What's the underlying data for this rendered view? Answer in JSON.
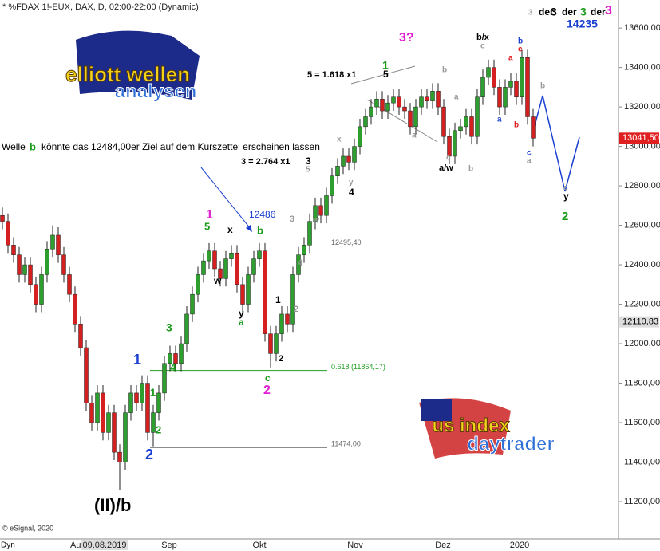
{
  "chart_data": {
    "type": "candlestick",
    "title": "* %FDAX 1!-EUX, DAX, D, 02:00-22:00 (Dynamic)",
    "footer": "© eSignal, 2020",
    "mode_label": "Dyn",
    "x_labels": [
      "Au",
      "09.08.2019",
      "Sep",
      "Okt",
      "Nov",
      "Dez",
      "2020"
    ],
    "ylim": [
      11010,
      13742
    ],
    "yticks": [
      {
        "value": 13600,
        "label": "13600,00"
      },
      {
        "value": 13400,
        "label": "13400,00"
      },
      {
        "value": 13200,
        "label": "13200,00"
      },
      {
        "value": 13000,
        "label": "13000,00"
      },
      {
        "value": 12800,
        "label": "12800,00"
      },
      {
        "value": 12600,
        "label": "12600,00"
      },
      {
        "value": 12400,
        "label": "12400,00"
      },
      {
        "value": 12200,
        "label": "12200,00"
      },
      {
        "value": 12000,
        "label": "12000,00"
      },
      {
        "value": 11800,
        "label": "11800,00"
      },
      {
        "value": 11600,
        "label": "11600,00"
      },
      {
        "value": 11400,
        "label": "11400,00"
      },
      {
        "value": 11200,
        "label": "11200,00"
      }
    ],
    "up_color": "#2e9e2e",
    "down_color": "#d42020",
    "open": [
      12650,
      12620,
      12500,
      12450,
      12350,
      12400,
      12300,
      12200,
      12350,
      12480,
      12550,
      12450,
      12350,
      12250,
      12100,
      11980,
      11700,
      11600,
      11750,
      11550,
      11650,
      11450,
      11400,
      11650,
      11750,
      11700,
      11800,
      11550,
      11650,
      11750,
      11900,
      11950,
      11900,
      12000,
      12150,
      12250,
      12350,
      12420,
      12470,
      12380,
      12330,
      12430,
      12460,
      12300,
      12200,
      12350,
      12430,
      12470,
      12050,
      11950,
      12050,
      12150,
      12100,
      12350,
      12450,
      12500,
      12620,
      12700,
      12650,
      12750,
      12850,
      12900,
      12950,
      12920,
      13000,
      13100,
      13150,
      13200,
      13240,
      13180,
      13220,
      13250,
      13200,
      13180,
      13100,
      13200,
      13250,
      13230,
      13280,
      13200,
      13050,
      12950,
      13080,
      13100,
      13150,
      13050,
      13250,
      13350,
      13400,
      13300,
      13200,
      13300,
      13330,
      13250,
      13450,
      13150
    ],
    "high": [
      12690,
      12660,
      12540,
      12490,
      12440,
      12440,
      12340,
      12390,
      12520,
      12600,
      12590,
      12490,
      12390,
      12290,
      12140,
      12020,
      11740,
      11790,
      11790,
      11690,
      11690,
      11490,
      11690,
      11790,
      11790,
      11840,
      11840,
      11690,
      11790,
      11940,
      11990,
      11990,
      12040,
      12190,
      12290,
      12390,
      12460,
      12510,
      12510,
      12420,
      12470,
      12500,
      12500,
      12340,
      12390,
      12470,
      12510,
      12510,
      12090,
      12090,
      12190,
      12190,
      12390,
      12490,
      12540,
      12660,
      12740,
      12740,
      12790,
      12890,
      12940,
      12990,
      12990,
      13040,
      13140,
      13190,
      13240,
      13280,
      13280,
      13260,
      13290,
      13290,
      13240,
      13220,
      13240,
      13290,
      13290,
      13320,
      13320,
      13240,
      13090,
      13120,
      13140,
      13190,
      13190,
      13290,
      13390,
      13440,
      13440,
      13340,
      13340,
      13370,
      13370,
      13490,
      13490,
      13190
    ],
    "low": [
      12580,
      12460,
      12410,
      12310,
      12310,
      12260,
      12160,
      12160,
      12310,
      12440,
      12410,
      12310,
      12210,
      12060,
      11940,
      11660,
      11560,
      11560,
      11510,
      11510,
      11410,
      11260,
      11360,
      11610,
      11660,
      11660,
      11510,
      11480,
      11610,
      11710,
      11860,
      11860,
      11860,
      11960,
      12110,
      12210,
      12310,
      12380,
      12340,
      12290,
      12290,
      12390,
      12260,
      12160,
      12160,
      12310,
      12390,
      12010,
      11880,
      11910,
      12010,
      12060,
      12060,
      12310,
      12410,
      12460,
      12580,
      12610,
      12610,
      12710,
      12810,
      12860,
      12880,
      12880,
      12960,
      13060,
      13110,
      13160,
      13140,
      13140,
      13180,
      13160,
      13140,
      13060,
      13060,
      13160,
      13190,
      13190,
      13160,
      13010,
      12910,
      12910,
      13040,
      13060,
      13010,
      13010,
      13210,
      13310,
      13260,
      13160,
      13160,
      13260,
      13210,
      13210,
      13110,
      13000
    ],
    "close": [
      12620,
      12500,
      12450,
      12350,
      12400,
      12300,
      12200,
      12350,
      12480,
      12550,
      12450,
      12350,
      12250,
      12100,
      11980,
      11700,
      11600,
      11750,
      11550,
      11650,
      11450,
      11400,
      11650,
      11750,
      11700,
      11800,
      11550,
      11650,
      11750,
      11900,
      11950,
      11900,
      12000,
      12150,
      12250,
      12350,
      12420,
      12470,
      12380,
      12330,
      12430,
      12460,
      12300,
      12200,
      12350,
      12430,
      12470,
      12050,
      11950,
      12050,
      12150,
      12100,
      12350,
      12450,
      12500,
      12620,
      12700,
      12650,
      12750,
      12850,
      12900,
      12950,
      12920,
      13000,
      13100,
      13150,
      13200,
      13240,
      13180,
      13220,
      13250,
      13200,
      13180,
      13100,
      13200,
      13250,
      13230,
      13280,
      13200,
      13050,
      12950,
      13080,
      13100,
      13150,
      13050,
      13250,
      13350,
      13400,
      13300,
      13200,
      13300,
      13330,
      13250,
      13450,
      13150,
      13041.5
    ],
    "levels": [
      {
        "value": 12495.4,
        "label": "12495,40",
        "color": "#666666"
      },
      {
        "value": 11864.17,
        "label": "0.618 (11864,17)",
        "color": "#22a022"
      },
      {
        "value": 11474,
        "label": "11474,00",
        "color": "#666666"
      }
    ],
    "last_price": {
      "value": 13041.5,
      "label": "13041,50",
      "color": "#e02020"
    },
    "marker_price": {
      "value": 12110.83,
      "label": "12110,83",
      "color": "#dddddd"
    }
  },
  "annotations": [
    "Welle",
    "b",
    "könnte das 12484,00er Ziel auf dem Kurszettel erscheinen lassen",
    "12486",
    "1",
    "5",
    "x",
    "b",
    "w",
    "y",
    "a",
    "c",
    "2",
    "2",
    "1",
    "2",
    "3",
    "4",
    "3 = 2.764 x1",
    "3",
    "5",
    "4",
    "y",
    "x",
    "w",
    "5 = 1.618 x1",
    "1",
    "5",
    "3?",
    "b/x",
    "c",
    "b",
    "a",
    "a/w",
    "c",
    "b",
    "a",
    "b",
    "c",
    "a",
    "a",
    "b",
    "c",
    "a",
    "b",
    "c",
    "y",
    "2",
    "1",
    "2",
    "3",
    "4",
    "1",
    "2",
    "(II)/b",
    "3",
    "der",
    "3",
    "der",
    "3",
    "der",
    "3",
    "14235"
  ],
  "logos": [
    "elliott wellen",
    "analysen",
    "us index",
    "daytrader"
  ]
}
